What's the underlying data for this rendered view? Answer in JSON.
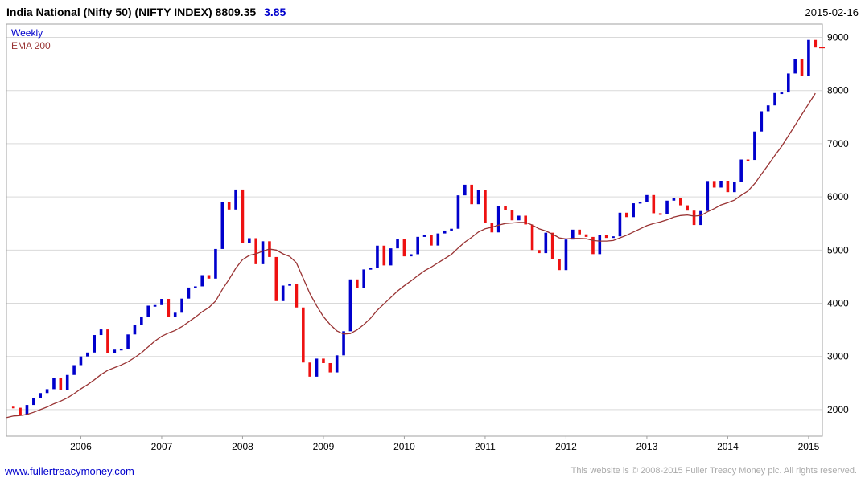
{
  "header": {
    "title": "India National (Nifty 50) (NIFTY INDEX) 8809.35",
    "change": "3.85",
    "date": "2015-02-16"
  },
  "legend": {
    "weekly": "Weekly",
    "ema": "EMA 200"
  },
  "footer": {
    "site": "www.fullertreacymoney.com",
    "copyright": "This website is © 2008-2015 Fuller Treacy Money plc. All rights reserved."
  },
  "chart_data": {
    "type": "line",
    "render_style": "weekly-ohlc-bars",
    "title": "India National (Nifty 50) (NIFTY INDEX)",
    "timeframe": "Weekly",
    "overlay": "EMA 200",
    "last_price": 8809.35,
    "change": 3.85,
    "as_of": "2015-02-16",
    "xlabel": "",
    "ylabel": "",
    "x_axis": {
      "start_year": 2005,
      "start_month": 2,
      "interval": "monthly-approximation",
      "tick_years": [
        2006,
        2007,
        2008,
        2009,
        2010,
        2011,
        2012,
        2013,
        2014,
        2015
      ],
      "xlim": [
        2005.08,
        2015.17
      ]
    },
    "y_axis": {
      "min": 1500,
      "max": 9250,
      "ticks": [
        2000,
        3000,
        4000,
        5000,
        6000,
        7000,
        8000,
        9000
      ],
      "side": "right"
    },
    "colors": {
      "up": "#0000cc",
      "down": "#ee1111",
      "ema": "#993333",
      "grid": "#d9d9d9",
      "border": "#a0a0a0",
      "axis_text": "#000000"
    },
    "close": [
      2055,
      2035,
      1903,
      2088,
      2221,
      2312,
      2385,
      2601,
      2371,
      2652,
      2837,
      3001,
      3074,
      3403,
      3508,
      3071,
      3128,
      3143,
      3414,
      3588,
      3744,
      3955,
      3966,
      4083,
      3745,
      3822,
      4088,
      4296,
      4318,
      4529,
      4464,
      5021,
      5901,
      5763,
      6139,
      5137,
      5224,
      4735,
      5166,
      4870,
      4041,
      4333,
      4360,
      3921,
      2886,
      2620,
      2959,
      2875,
      2700,
      3021,
      3474,
      4449,
      4291,
      4636,
      4662,
      5084,
      4712,
      5033,
      5201,
      4882,
      4922,
      5249,
      5278,
      5086,
      5313,
      5368,
      5402,
      6030,
      6230,
      5863,
      6135,
      5506,
      5333,
      5834,
      5750,
      5560,
      5647,
      5482,
      5001,
      4943,
      5327,
      4832,
      4624,
      5199,
      5385,
      5296,
      5248,
      4924,
      5279,
      5229,
      5259,
      5703,
      5620,
      5880,
      5905,
      6035,
      5693,
      5683,
      5930,
      5986,
      5842,
      5742,
      5472,
      5735,
      6299,
      6176,
      6304,
      6090,
      6277,
      6704,
      6696,
      7230,
      7611,
      7721,
      7954,
      7965,
      8322,
      8588,
      8283,
      8952,
      8809
    ],
    "ema200": [
      1850,
      1880,
      1890,
      1910,
      1950,
      2000,
      2050,
      2110,
      2160,
      2220,
      2300,
      2390,
      2470,
      2560,
      2660,
      2740,
      2790,
      2840,
      2900,
      2980,
      3070,
      3180,
      3290,
      3380,
      3440,
      3490,
      3560,
      3650,
      3740,
      3840,
      3920,
      4040,
      4260,
      4450,
      4660,
      4820,
      4900,
      4930,
      4980,
      5020,
      5000,
      4930,
      4880,
      4760,
      4470,
      4180,
      3950,
      3750,
      3600,
      3480,
      3420,
      3430,
      3500,
      3600,
      3720,
      3870,
      3990,
      4110,
      4230,
      4330,
      4420,
      4520,
      4610,
      4680,
      4760,
      4840,
      4920,
      5040,
      5150,
      5240,
      5340,
      5400,
      5430,
      5470,
      5500,
      5510,
      5520,
      5520,
      5470,
      5400,
      5360,
      5300,
      5230,
      5210,
      5220,
      5220,
      5215,
      5180,
      5170,
      5170,
      5180,
      5230,
      5280,
      5340,
      5400,
      5460,
      5500,
      5530,
      5570,
      5620,
      5650,
      5660,
      5640,
      5650,
      5720,
      5780,
      5850,
      5890,
      5940,
      6030,
      6110,
      6250,
      6430,
      6600,
      6780,
      6950,
      7150,
      7350,
      7550,
      7750,
      7950
    ]
  }
}
